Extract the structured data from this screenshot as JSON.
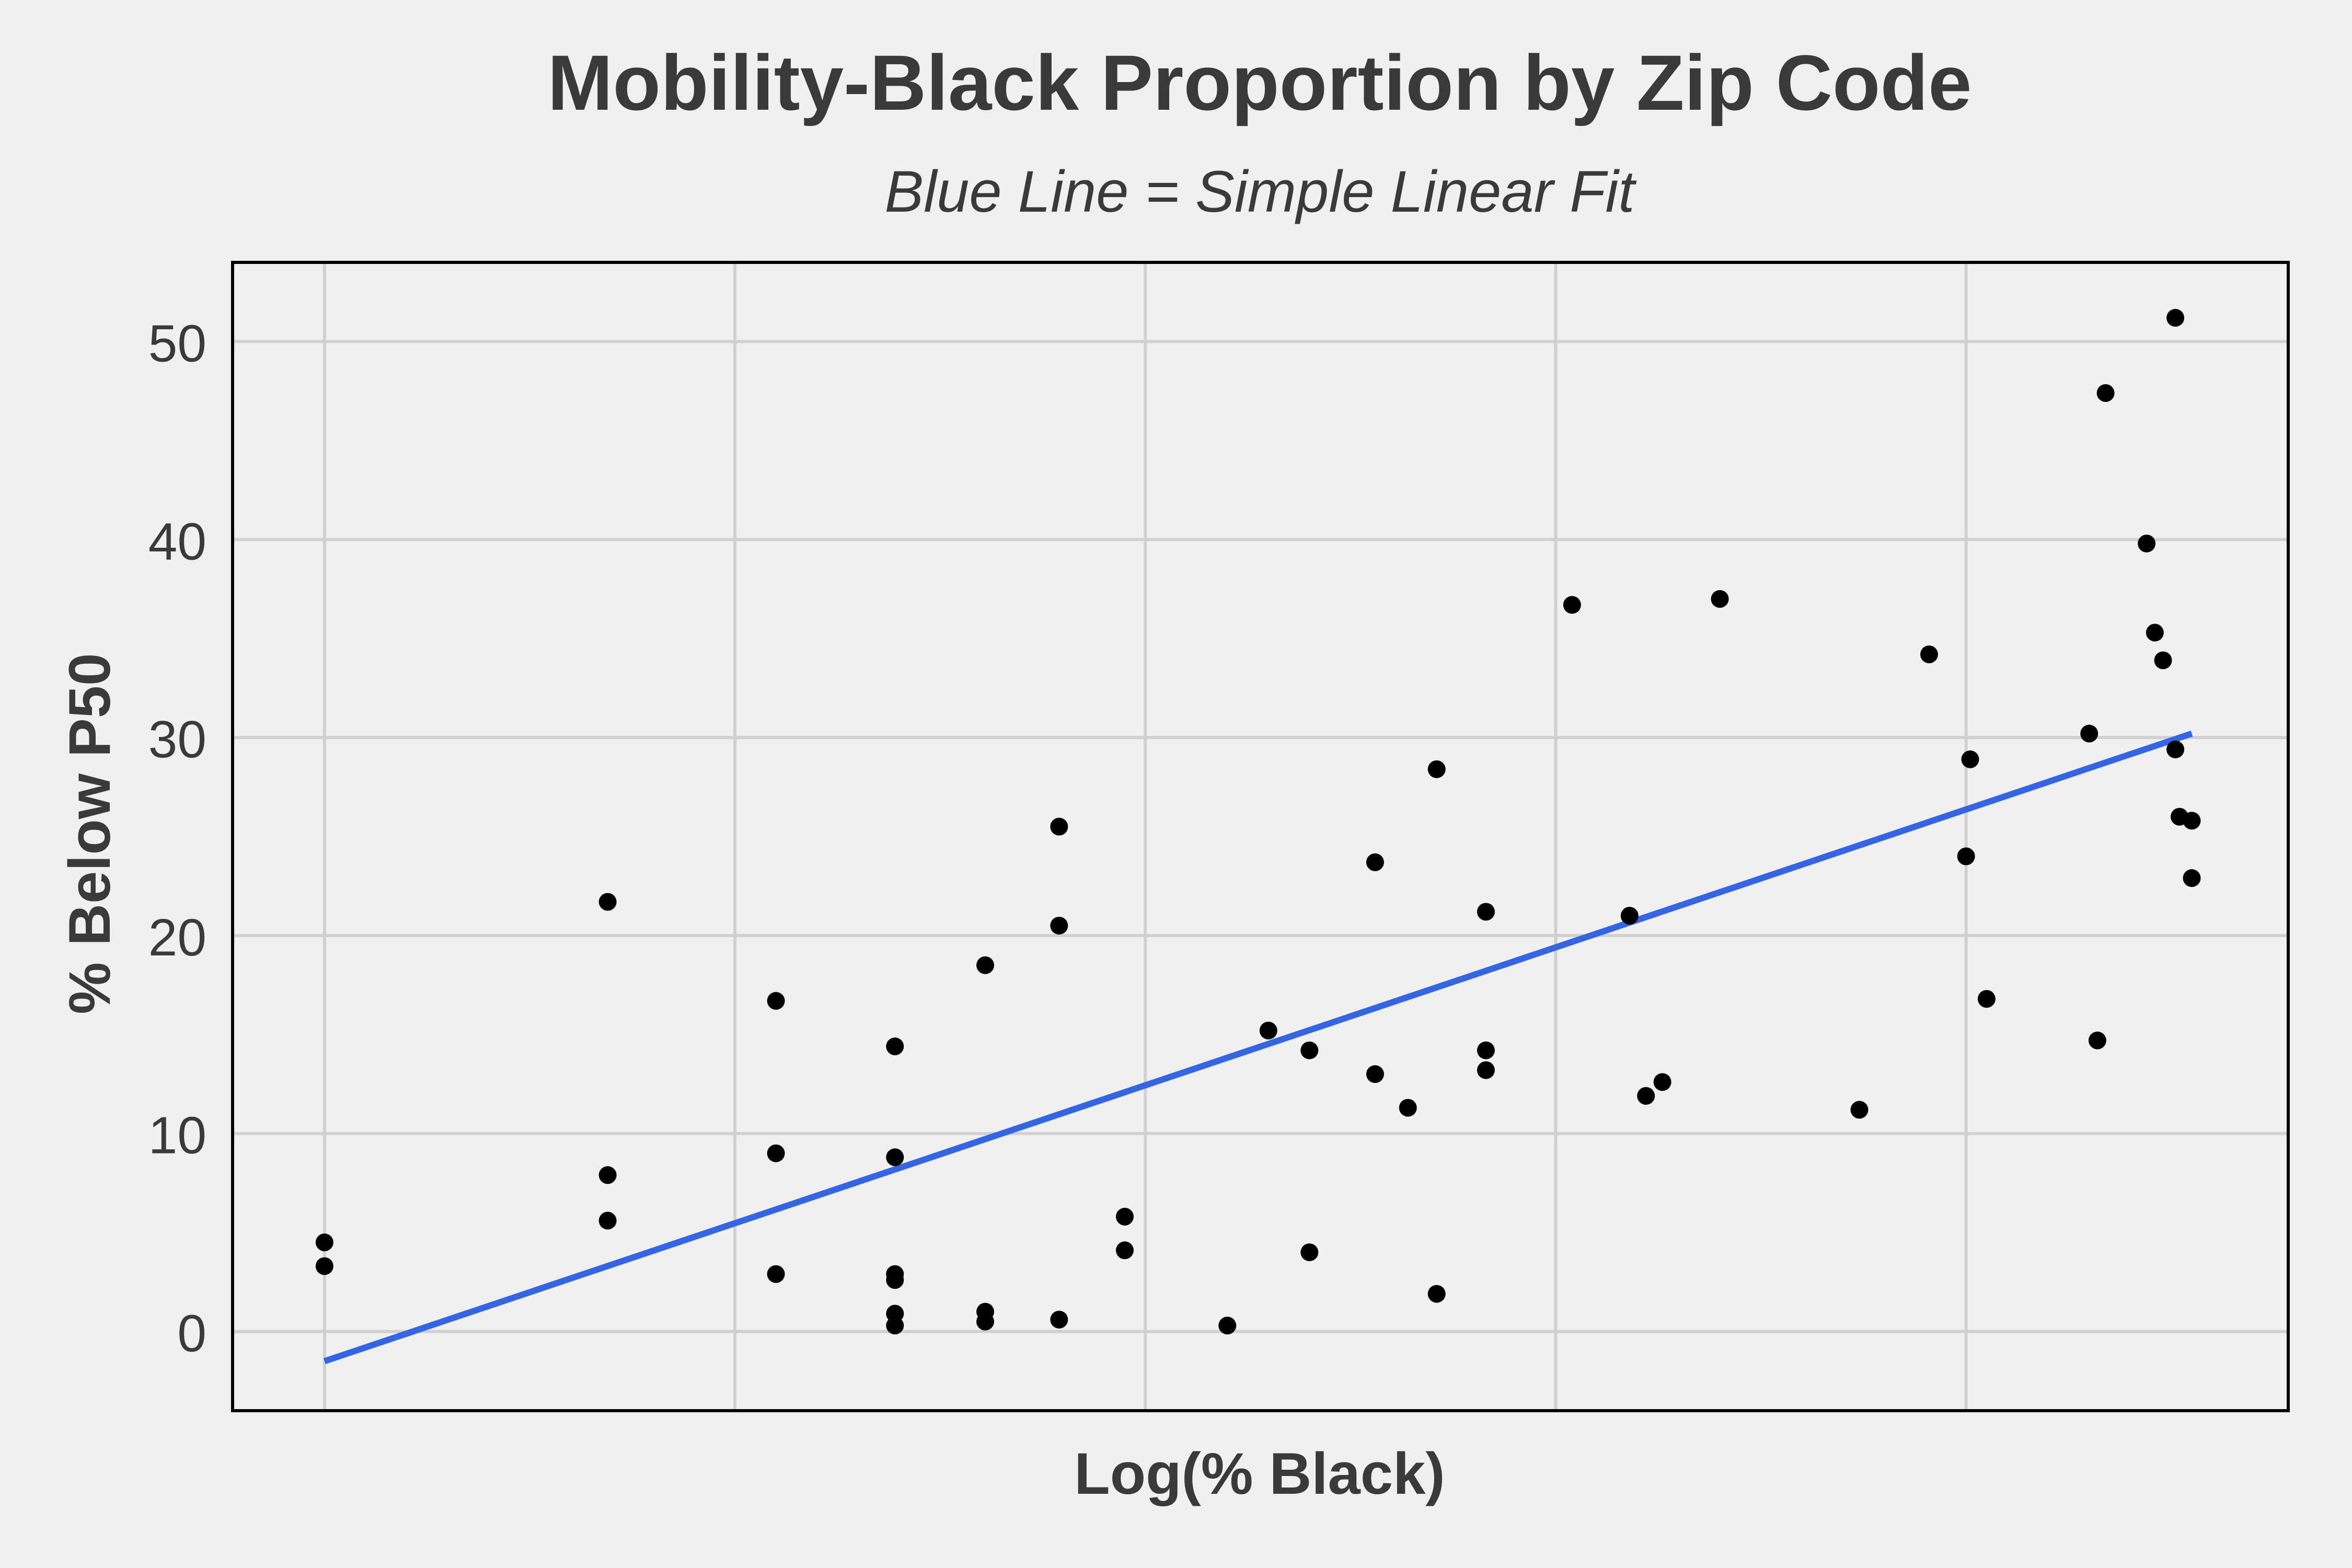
{
  "chart_data": {
    "type": "scatter",
    "title": "Mobility-Black Proportion by Zip Code",
    "subtitle": "Blue Line = Simple Linear Fit",
    "xlabel": "Log(% Black)",
    "ylabel": "% Below P50",
    "yticks": [
      "0",
      "10",
      "20",
      "30",
      "40",
      "50"
    ],
    "ytick_values": [
      0,
      10,
      20,
      30,
      40,
      50
    ],
    "xticks": [],
    "grid": true,
    "ylim": [
      -4,
      54
    ],
    "xlim": [
      -0.224,
      4.785
    ],
    "xgrid_values": [
      0,
      1,
      2,
      3,
      4
    ],
    "colors": {
      "points": "#000000",
      "fit_line": "#3465e6",
      "grid": "#d0d0d0",
      "panel_border": "#000000",
      "background": "#f0f0f0"
    },
    "fit_line": {
      "x": [
        0.0,
        4.55
      ],
      "y": [
        -1.5,
        30.2
      ]
    },
    "points": [
      {
        "x": 0.0,
        "y": 4.5
      },
      {
        "x": 0.0,
        "y": 3.3
      },
      {
        "x": 0.69,
        "y": 21.7
      },
      {
        "x": 0.69,
        "y": 7.9
      },
      {
        "x": 0.69,
        "y": 5.6
      },
      {
        "x": 1.1,
        "y": 16.7
      },
      {
        "x": 1.1,
        "y": 9.0
      },
      {
        "x": 1.1,
        "y": 2.9
      },
      {
        "x": 1.39,
        "y": 14.4
      },
      {
        "x": 1.39,
        "y": 8.8
      },
      {
        "x": 1.39,
        "y": 2.9
      },
      {
        "x": 1.39,
        "y": 2.6
      },
      {
        "x": 1.39,
        "y": 0.9
      },
      {
        "x": 1.39,
        "y": 0.3
      },
      {
        "x": 1.61,
        "y": 18.5
      },
      {
        "x": 1.61,
        "y": 1.0
      },
      {
        "x": 1.61,
        "y": 0.5
      },
      {
        "x": 1.79,
        "y": 25.5
      },
      {
        "x": 1.79,
        "y": 20.5
      },
      {
        "x": 1.79,
        "y": 0.6
      },
      {
        "x": 1.95,
        "y": 5.8
      },
      {
        "x": 1.95,
        "y": 4.1
      },
      {
        "x": 2.2,
        "y": 0.3
      },
      {
        "x": 2.3,
        "y": 15.2
      },
      {
        "x": 2.4,
        "y": 14.2
      },
      {
        "x": 2.4,
        "y": 4.0
      },
      {
        "x": 2.56,
        "y": 23.7
      },
      {
        "x": 2.56,
        "y": 13.0
      },
      {
        "x": 2.64,
        "y": 11.3
      },
      {
        "x": 2.71,
        "y": 28.4
      },
      {
        "x": 2.71,
        "y": 1.9
      },
      {
        "x": 2.83,
        "y": 21.2
      },
      {
        "x": 2.83,
        "y": 14.2
      },
      {
        "x": 2.83,
        "y": 13.2
      },
      {
        "x": 3.04,
        "y": 36.7
      },
      {
        "x": 3.18,
        "y": 21.0
      },
      {
        "x": 3.22,
        "y": 11.9
      },
      {
        "x": 3.26,
        "y": 12.6
      },
      {
        "x": 3.4,
        "y": 37.0
      },
      {
        "x": 3.74,
        "y": 11.2
      },
      {
        "x": 3.91,
        "y": 34.2
      },
      {
        "x": 4.0,
        "y": 24.0
      },
      {
        "x": 4.01,
        "y": 28.9
      },
      {
        "x": 4.05,
        "y": 16.8
      },
      {
        "x": 4.32,
        "y": 14.7
      },
      {
        "x": 4.3,
        "y": 30.2
      },
      {
        "x": 4.34,
        "y": 47.4
      },
      {
        "x": 4.44,
        "y": 39.8
      },
      {
        "x": 4.46,
        "y": 35.3
      },
      {
        "x": 4.48,
        "y": 33.9
      },
      {
        "x": 4.51,
        "y": 51.2
      },
      {
        "x": 4.51,
        "y": 29.4
      },
      {
        "x": 4.52,
        "y": 26.0
      },
      {
        "x": 4.55,
        "y": 25.8
      },
      {
        "x": 4.55,
        "y": 22.9
      }
    ]
  }
}
